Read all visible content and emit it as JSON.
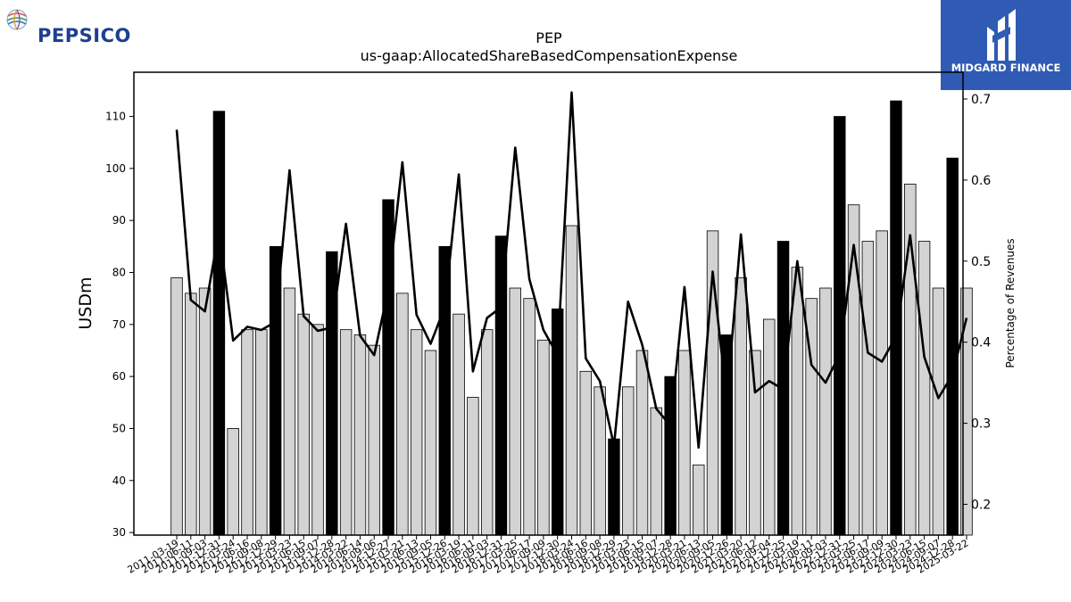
{
  "branding": {
    "company_logo_text": "PEPSICO",
    "partner_logo_text": "MIDGARD FINANCE"
  },
  "chart_data": {
    "type": "bar",
    "title": "PEP",
    "subtitle": "us-gaap:AllocatedShareBasedCompensationExpense",
    "ylabel": "USDm",
    "y2label": "Percentage of Revenues",
    "ylim": [
      29.5,
      118.5
    ],
    "y2lim": [
      0.162,
      0.733
    ],
    "yticks": [
      30,
      40,
      50,
      60,
      70,
      80,
      90,
      100,
      110
    ],
    "y2ticks": [
      0.2,
      0.3,
      0.4,
      0.5,
      0.6,
      0.7
    ],
    "y2tick_labels": [
      "0.2",
      "0.3",
      "0.4",
      "0.5",
      "0.6",
      "0.7"
    ],
    "grid": false,
    "x": [
      "2011-03-19",
      "2011-06-11",
      "2011-09-03",
      "2011-12-31",
      "2012-03-24",
      "2012-06-16",
      "2012-09-08",
      "2012-12-29",
      "2013-03-23",
      "2013-06-15",
      "2013-09-07",
      "2013-12-28",
      "2014-03-22",
      "2014-06-14",
      "2014-09-06",
      "2014-12-27",
      "2015-03-21",
      "2015-06-13",
      "2015-09-05",
      "2015-12-26",
      "2016-03-19",
      "2016-06-11",
      "2016-09-03",
      "2016-12-31",
      "2017-03-25",
      "2017-06-17",
      "2017-09-09",
      "2017-12-30",
      "2018-03-24",
      "2018-06-16",
      "2018-09-08",
      "2018-12-29",
      "2019-03-23",
      "2019-06-15",
      "2019-09-07",
      "2019-12-28",
      "2020-03-21",
      "2020-06-13",
      "2020-09-05",
      "2020-12-26",
      "2021-03-20",
      "2021-06-12",
      "2021-09-04",
      "2021-12-25",
      "2022-03-19",
      "2022-06-11",
      "2022-09-03",
      "2022-12-31",
      "2023-03-25",
      "2023-06-17",
      "2023-09-09",
      "2023-12-30",
      "2024-03-23",
      "2024-06-15",
      "2024-09-07",
      "2024-12-28",
      "2025-03-22"
    ],
    "series": [
      {
        "kind": "bar",
        "values": [
          79,
          76,
          77,
          111,
          50,
          69,
          69,
          85,
          77,
          72,
          70,
          84,
          69,
          68,
          66,
          94,
          76,
          69,
          65,
          85,
          72,
          56,
          69,
          87,
          77,
          75,
          67,
          73,
          89,
          61,
          58,
          48,
          58,
          65,
          54,
          60,
          65,
          43,
          88,
          68,
          79,
          65,
          71,
          86,
          81,
          75,
          77,
          110,
          93,
          86,
          88,
          113,
          97,
          86,
          77,
          102,
          77
        ],
        "highlight": [
          false,
          false,
          false,
          true,
          false,
          false,
          false,
          true,
          false,
          false,
          false,
          true,
          false,
          false,
          false,
          true,
          false,
          false,
          false,
          true,
          false,
          false,
          false,
          true,
          false,
          false,
          false,
          true,
          false,
          false,
          false,
          true,
          false,
          false,
          false,
          true,
          false,
          false,
          false,
          true,
          false,
          false,
          false,
          true,
          false,
          false,
          false,
          true,
          false,
          false,
          false,
          true,
          false,
          false,
          false,
          true,
          false
        ],
        "color": "#d3d3d3",
        "highlight_color": "#000000"
      },
      {
        "kind": "line",
        "axis": "right",
        "color": "#000000",
        "values": [
          0.662,
          0.452,
          0.438,
          0.538,
          0.402,
          0.419,
          0.415,
          0.425,
          0.612,
          0.432,
          0.414,
          0.418,
          0.546,
          0.408,
          0.384,
          0.465,
          0.622,
          0.434,
          0.398,
          0.443,
          0.607,
          0.364,
          0.43,
          0.443,
          0.64,
          0.478,
          0.415,
          0.384,
          0.708,
          0.38,
          0.352,
          0.272,
          0.45,
          0.397,
          0.318,
          0.297,
          0.468,
          0.27,
          0.487,
          0.328,
          0.533,
          0.338,
          0.352,
          0.342,
          0.5,
          0.372,
          0.35,
          0.385,
          0.52,
          0.387,
          0.376,
          0.407,
          0.532,
          0.382,
          0.331,
          0.36,
          0.43
        ]
      }
    ]
  }
}
